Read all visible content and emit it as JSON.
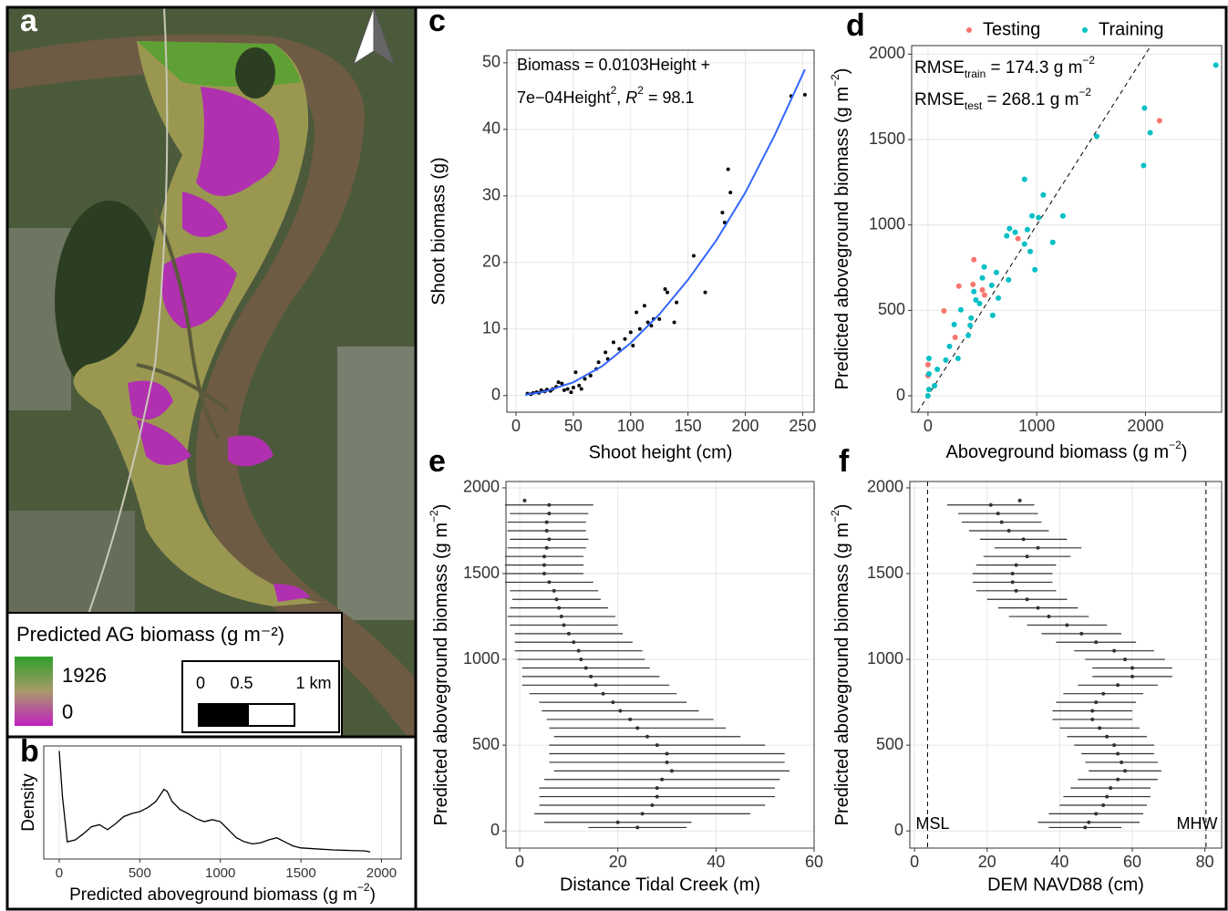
{
  "map": {
    "panel": "a",
    "legend_title": "Predicted AG biomass (g m⁻²)",
    "legend_max": "1926",
    "legend_min": "0",
    "scale_labels": [
      "0",
      "0.5",
      "1 km"
    ]
  },
  "chart_data": [
    {
      "type": "density",
      "panel": "b",
      "xlabel": [
        "Predicted aboveground biomass (g m",
        "−2",
        ")"
      ],
      "ylabel": "Density",
      "color": "#000000",
      "grid": true,
      "x": [
        0,
        20,
        50,
        100,
        150,
        200,
        250,
        300,
        350,
        400,
        450,
        500,
        550,
        600,
        650,
        670,
        700,
        750,
        800,
        850,
        900,
        950,
        1000,
        1050,
        1100,
        1150,
        1200,
        1250,
        1300,
        1350,
        1400,
        1450,
        1500,
        1600,
        1700,
        1800,
        1900,
        1930
      ],
      "values": [
        1.0,
        0.55,
        0.1,
        0.12,
        0.18,
        0.25,
        0.27,
        0.22,
        0.28,
        0.35,
        0.38,
        0.4,
        0.44,
        0.5,
        0.62,
        0.6,
        0.5,
        0.42,
        0.38,
        0.33,
        0.3,
        0.32,
        0.3,
        0.22,
        0.14,
        0.1,
        0.08,
        0.09,
        0.12,
        0.14,
        0.1,
        0.06,
        0.04,
        0.03,
        0.02,
        0.015,
        0.01,
        0
      ],
      "xlim": [
        -96,
        2122
      ],
      "ylim": [
        -0.07,
        1.05
      ],
      "xticks": [
        0,
        500,
        1000,
        1500,
        2000
      ]
    },
    {
      "type": "scatter",
      "panel": "c",
      "xlabel": "Shoot height (cm)",
      "ylabel": "Shoot biomass (g)",
      "grid": true,
      "annotation": [
        [
          "Biomass =  0.0103Height +"
        ],
        [
          "7e−04Height",
          "2",
          ", ",
          "R",
          "2",
          " = 98.1"
        ]
      ],
      "series": [
        {
          "color": "#000000",
          "x": [
            10,
            13,
            15,
            18,
            20,
            22,
            25,
            27,
            30,
            32,
            35,
            37,
            40,
            42,
            45,
            48,
            50,
            52,
            55,
            57,
            60,
            65,
            70,
            72,
            78,
            80,
            85,
            90,
            95,
            100,
            102,
            105,
            108,
            112,
            115,
            118,
            120,
            125,
            130,
            132,
            138,
            140,
            155,
            165,
            180,
            182,
            185,
            187,
            240,
            252
          ],
          "values": [
            0.3,
            0.2,
            0.4,
            0.5,
            0.4,
            0.8,
            0.6,
            0.9,
            0.7,
            1.0,
            1.3,
            2.0,
            1.8,
            0.8,
            1.0,
            0.5,
            1.2,
            3.5,
            1.5,
            1.0,
            2.5,
            3.0,
            4.0,
            5.0,
            6.5,
            5.5,
            8.0,
            7.0,
            8.5,
            9.5,
            7.5,
            12.5,
            10,
            13.5,
            11,
            10.5,
            11.5,
            11.5,
            16,
            15.5,
            11,
            14,
            21,
            15.5,
            27.5,
            26,
            34,
            30.5,
            45,
            45.2
          ]
        }
      ],
      "fit": {
        "color": "#3366ff",
        "x": [
          8,
          25,
          50,
          75,
          100,
          125,
          150,
          175,
          200,
          225,
          252
        ],
        "values": [
          0.1,
          0.6,
          2,
          4.4,
          7.9,
          12.2,
          17.4,
          23.4,
          30.5,
          38.9,
          49
        ]
      },
      "xlim": [
        -8,
        260
      ],
      "ylim": [
        -2.5,
        51.9
      ],
      "xticks": [
        0,
        50,
        100,
        150,
        200,
        250
      ],
      "yticks": [
        0,
        10,
        20,
        30,
        40,
        50
      ]
    },
    {
      "type": "scatter",
      "panel": "d",
      "xlabel": [
        "Aboveground biomass (g m",
        "−2",
        ")"
      ],
      "ylabel": [
        "Predicted aboveground biomass (g m",
        "−2",
        ")"
      ],
      "grid": true,
      "identity_line": true,
      "legend": "top",
      "annotation": [
        [
          "RMSE",
          "train",
          " =  174.3  g  m",
          "−2"
        ],
        [
          "RMSE",
          "test",
          " = 268.1 g m",
          "−2"
        ]
      ],
      "series": [
        {
          "name": "Testing",
          "color": "#f8766d",
          "x": [
            0,
            0,
            147,
            250,
            284,
            414,
            422,
            500,
            828,
            2129,
            520
          ],
          "values": [
            118,
            182,
            497,
            342,
            642,
            652,
            797,
            620,
            920,
            1610,
            590
          ]
        },
        {
          "name": "Training",
          "color": "#00bfc4",
          "x": [
            2647,
            1991,
            2043,
            1983,
            1552,
            888,
            1060,
            1241,
            1017,
            957,
            914,
            802,
            724,
            750,
            888,
            1147,
            940,
            983,
            517,
            629,
            741,
            500,
            586,
            422,
            474,
            595,
            397,
            388,
            241,
            302,
            198,
            276,
            164,
            86,
            60,
            9,
            9,
            9,
            0,
            371,
            647,
            440
          ],
          "values": [
            1936,
            1684,
            1540,
            1348,
            1519,
            1267,
            1176,
            1053,
            1043,
            1053,
            973,
            957,
            936,
            979,
            888,
            898,
            845,
            738,
            754,
            722,
            679,
            690,
            647,
            610,
            540,
            471,
            455,
            412,
            417,
            503,
            289,
            219,
            209,
            155,
            59,
            219,
            128,
            37,
            0,
            353,
            572,
            561
          ]
        }
      ],
      "xlim": [
        -150,
        2700
      ],
      "ylim": [
        -96,
        2050
      ],
      "xticks": [
        0,
        1000,
        2000
      ],
      "yticks": [
        0,
        500,
        1000,
        1500,
        2000
      ]
    },
    {
      "type": "errorbar",
      "panel": "e",
      "xlabel": "Distance Tidal Creek (m)",
      "ylabel": [
        "Predicted aboveground biomass (g m",
        "−2",
        ")"
      ],
      "grid": true,
      "color": "#333333",
      "values": [
        1926,
        1900,
        1850,
        1800,
        1750,
        1700,
        1650,
        1600,
        1550,
        1500,
        1450,
        1400,
        1350,
        1300,
        1250,
        1200,
        1150,
        1100,
        1050,
        1000,
        950,
        900,
        850,
        800,
        750,
        700,
        650,
        600,
        550,
        500,
        450,
        400,
        350,
        300,
        250,
        200,
        150,
        100,
        50,
        20
      ],
      "x": [
        1,
        6,
        6,
        5.5,
        5.5,
        6,
        5.5,
        5,
        5,
        5,
        6,
        7,
        7.5,
        8,
        8.5,
        9,
        10,
        11,
        12,
        12.5,
        13.5,
        14.5,
        15.5,
        17,
        19,
        20.5,
        22.5,
        24,
        26,
        28,
        30,
        30,
        31,
        29,
        28,
        28,
        27,
        25,
        20,
        24
      ],
      "xerr": [
        0,
        9,
        8,
        8,
        8,
        8,
        8,
        8,
        8,
        8,
        9,
        9,
        9,
        10,
        11,
        11,
        11,
        12,
        13,
        13,
        13,
        14,
        15,
        15,
        15,
        16,
        17,
        18,
        19,
        22,
        24,
        24,
        24,
        24,
        24,
        24,
        23,
        22,
        15,
        10
      ],
      "xlim": [
        -2.8,
        60
      ],
      "ylim": [
        -100,
        2037
      ],
      "xticks": [
        0,
        20,
        40,
        60
      ],
      "yticks": [
        0,
        500,
        1000,
        1500,
        2000
      ]
    },
    {
      "type": "errorbar",
      "panel": "f",
      "xlabel": "DEM NAVD88 (cm)",
      "ylabel": [
        "Predicted aboveground biomass (g m",
        "−2",
        ")"
      ],
      "grid": true,
      "color": "#333333",
      "values": [
        1926,
        1900,
        1850,
        1800,
        1750,
        1700,
        1650,
        1600,
        1550,
        1500,
        1450,
        1400,
        1350,
        1300,
        1250,
        1200,
        1150,
        1100,
        1050,
        1000,
        950,
        900,
        850,
        800,
        750,
        700,
        650,
        600,
        550,
        500,
        450,
        400,
        350,
        300,
        250,
        200,
        150,
        100,
        50,
        20
      ],
      "x": [
        29,
        21,
        23,
        24,
        26,
        30,
        34,
        31,
        28,
        27,
        27,
        28,
        31,
        34,
        37,
        42,
        46,
        50,
        55,
        58,
        60,
        60,
        56,
        52,
        50,
        49,
        49,
        51,
        53,
        55,
        56,
        57,
        58,
        56,
        54,
        53,
        52,
        50,
        48,
        47
      ],
      "xerr": [
        0,
        12,
        11,
        11,
        11,
        12,
        12,
        12,
        11,
        11,
        11,
        11,
        11,
        11,
        11,
        11,
        11,
        11,
        11,
        11,
        11,
        11,
        11,
        11,
        11,
        11,
        11,
        11,
        11,
        11,
        10,
        10,
        10,
        11,
        11,
        12,
        12,
        13,
        14,
        10
      ],
      "reference_lines": [
        {
          "label": "MSL",
          "value": 3.6
        },
        {
          "label": "MHW",
          "value": 80.3
        }
      ],
      "xlim": [
        -1.3,
        84.6
      ],
      "ylim": [
        -100,
        2037
      ],
      "xticks": [
        0,
        20,
        40,
        60,
        80
      ],
      "yticks": [
        0,
        500,
        1000,
        1500,
        2000
      ]
    }
  ]
}
